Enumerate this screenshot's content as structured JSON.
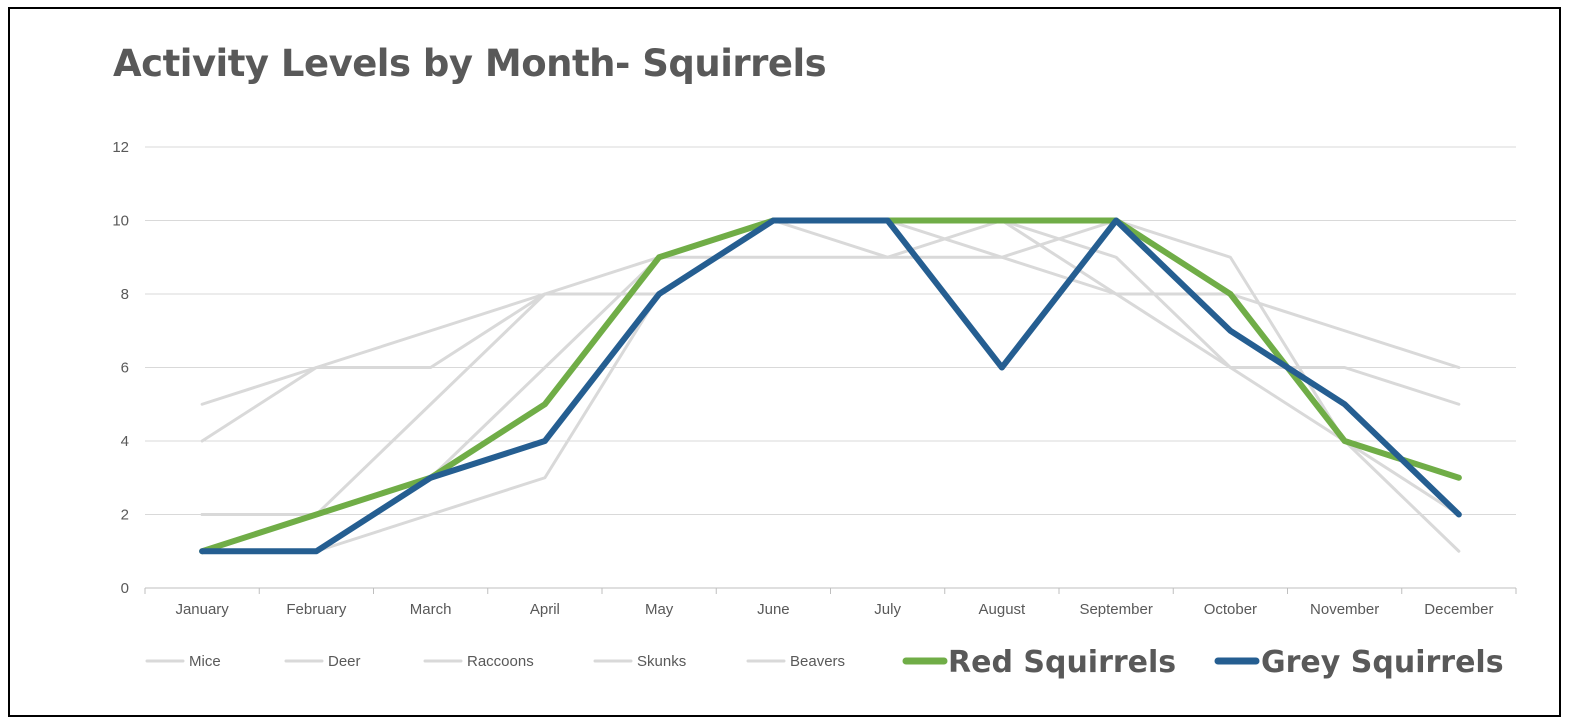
{
  "chart_data": {
    "type": "line",
    "title": "Activity Levels by Month- Squirrels",
    "xlabel": "",
    "ylabel": "",
    "ylim": [
      0,
      12
    ],
    "yticks": [
      0,
      2,
      4,
      6,
      8,
      10,
      12
    ],
    "grid": true,
    "legend_position": "bottom",
    "categories": [
      "January",
      "February",
      "March",
      "April",
      "May",
      "June",
      "July",
      "August",
      "September",
      "October",
      "November",
      "December"
    ],
    "series": [
      {
        "name": "Mice",
        "color": "#d9d9d9",
        "values": [
          5,
          6,
          6,
          8,
          8,
          10,
          10,
          10,
          9,
          6,
          6,
          5
        ]
      },
      {
        "name": "Deer",
        "color": "#d9d9d9",
        "values": [
          4,
          6,
          7,
          8,
          9,
          9,
          9,
          9,
          8,
          8,
          7,
          6
        ]
      },
      {
        "name": "Raccoons",
        "color": "#d9d9d9",
        "values": [
          2,
          2,
          5,
          8,
          8,
          10,
          9,
          10,
          10,
          9,
          4,
          2
        ]
      },
      {
        "name": "Skunks",
        "color": "#d9d9d9",
        "values": [
          1,
          1,
          2,
          3,
          8,
          10,
          10,
          10,
          8,
          6,
          4,
          1
        ]
      },
      {
        "name": "Beavers",
        "color": "#d9d9d9",
        "values": [
          2,
          2,
          3,
          6,
          9,
          10,
          10,
          9,
          10,
          7,
          5,
          2
        ]
      },
      {
        "name": "Red Squirrels",
        "color": "#70ad47",
        "highlight": true,
        "values": [
          1,
          2,
          3,
          5,
          9,
          10,
          10,
          10,
          10,
          8,
          4,
          3
        ]
      },
      {
        "name": "Grey Squirrels",
        "color": "#255e91",
        "highlight": true,
        "values": [
          1,
          1,
          3,
          4,
          8,
          10,
          10,
          6,
          10,
          7,
          5,
          2
        ]
      }
    ]
  }
}
